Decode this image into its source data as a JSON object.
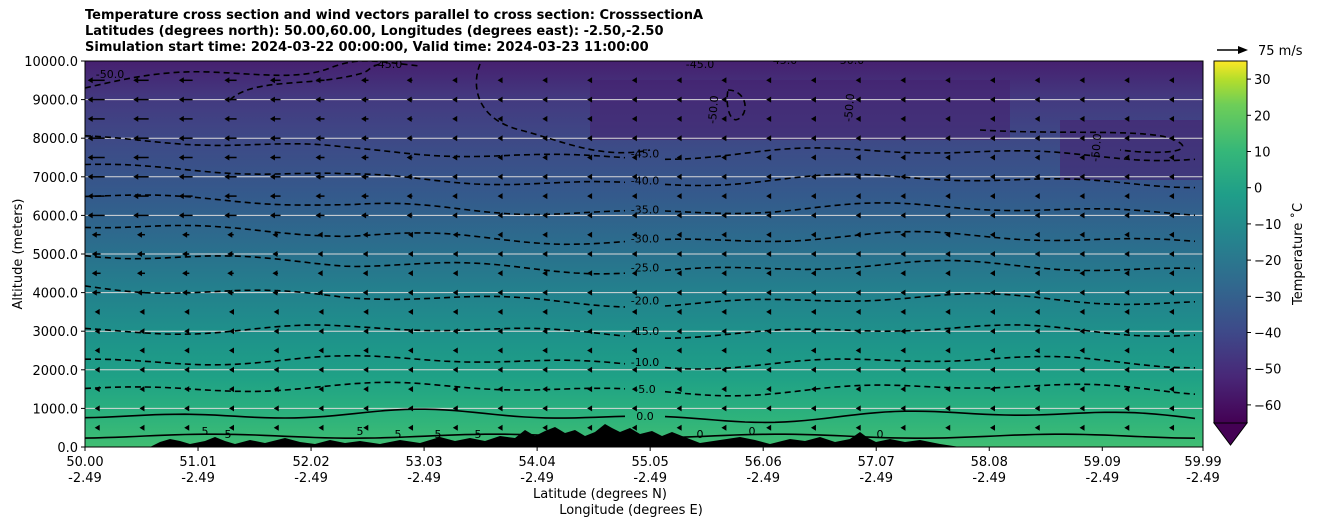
{
  "chart_data": {
    "type": "heatmap",
    "title_lines": [
      "Temperature cross section and wind vectors parallel to cross section: CrosssectionA",
      "Latitudes (degrees north): 50.00,60.00, Longitudes (degrees east): -2.50,-2.50",
      "Simulation start time: 2024-03-22 00:00:00, Valid time: 2024-03-23 11:00:00"
    ],
    "xlabel": "Latitude (degrees N)",
    "xlabel2": "Longitude (degrees E)",
    "ylabel": "Altitude (meters)",
    "x_ticks": [
      {
        "lat": "50.00",
        "lon": "-2.49"
      },
      {
        "lat": "51.01",
        "lon": "-2.49"
      },
      {
        "lat": "52.02",
        "lon": "-2.49"
      },
      {
        "lat": "53.03",
        "lon": "-2.49"
      },
      {
        "lat": "54.04",
        "lon": "-2.49"
      },
      {
        "lat": "55.05",
        "lon": "-2.49"
      },
      {
        "lat": "56.06",
        "lon": "-2.49"
      },
      {
        "lat": "57.07",
        "lon": "-2.49"
      },
      {
        "lat": "58.08",
        "lon": "-2.49"
      },
      {
        "lat": "59.09",
        "lon": "-2.49"
      },
      {
        "lat": "59.99",
        "lon": "-2.49"
      }
    ],
    "xlim": [
      50.0,
      59.99
    ],
    "y_ticks": [
      "0.0",
      "1000.0",
      "2000.0",
      "3000.0",
      "4000.0",
      "5000.0",
      "6000.0",
      "7000.0",
      "8000.0",
      "9000.0",
      "10000.0"
    ],
    "ylim": [
      0,
      10000
    ],
    "y_gridlines": true,
    "colorbar": {
      "label": "Temperature ˚C",
      "ticks": [
        "30",
        "20",
        "10",
        "0",
        "−10",
        "−20",
        "−30",
        "−40",
        "−50",
        "−60"
      ],
      "range": [
        -65,
        35
      ],
      "extend": "min",
      "colormap": "viridis"
    },
    "quiver_key": {
      "label": "75 m/s",
      "value": 75
    },
    "contour_levels": [
      {
        "label": "0.0",
        "altitude": 800,
        "style": "solid"
      },
      {
        "label": "-5.0",
        "altitude": 1500,
        "style": "dashed"
      },
      {
        "label": "-10.0",
        "altitude": 2200,
        "style": "dashed"
      },
      {
        "label": "-15.0",
        "altitude": 3000,
        "style": "dashed"
      },
      {
        "label": "-20.0",
        "altitude": 3800,
        "style": "dashed"
      },
      {
        "label": "-25.0",
        "altitude": 4650,
        "style": "dashed"
      },
      {
        "label": "-30.0",
        "altitude": 5400,
        "style": "dashed"
      },
      {
        "label": "-35.0",
        "altitude": 6150,
        "style": "dashed"
      },
      {
        "label": "-40.0",
        "altitude": 6900,
        "style": "dashed"
      },
      {
        "label": "-45.0",
        "altitude": 7600,
        "style": "dashed"
      }
    ],
    "other_contour_labels": [
      "-50.0",
      "-45.0",
      "-45.0",
      "-45.0",
      "-50.0",
      "-50.0",
      "-50.0",
      "-50.0",
      "5",
      "5",
      "5",
      "5",
      "5",
      "5",
      "0",
      "0",
      "0"
    ],
    "terrain": "black filled orography near the surface between 50.5 and 57.5 degrees N",
    "wind": "westward-pointing arrows, strongest (~20-30 m/s) aloft at 7000-9500 m between 50 and 53 degrees N, weak elsewhere"
  }
}
